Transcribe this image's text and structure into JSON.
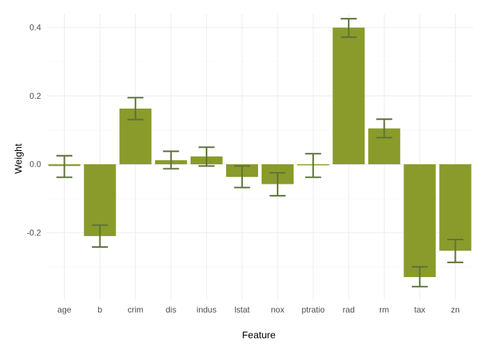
{
  "chart_data": {
    "type": "bar",
    "title": "",
    "xlabel": "Feature",
    "ylabel": "Weight",
    "categories": [
      "age",
      "b",
      "crim",
      "dis",
      "indus",
      "lstat",
      "nox",
      "ptratio",
      "rad",
      "rm",
      "tax",
      "zn"
    ],
    "values": [
      -0.005,
      -0.21,
      0.163,
      0.012,
      0.023,
      -0.037,
      -0.058,
      -0.003,
      0.4,
      0.105,
      -0.33,
      -0.253
    ],
    "error_low": [
      -0.038,
      -0.242,
      0.131,
      -0.013,
      -0.005,
      -0.068,
      -0.092,
      -0.038,
      0.372,
      0.078,
      -0.358,
      -0.287
    ],
    "error_high": [
      0.025,
      -0.178,
      0.195,
      0.038,
      0.05,
      -0.005,
      -0.025,
      0.031,
      0.426,
      0.132,
      -0.3,
      -0.22
    ],
    "ylim": [
      -0.395,
      0.44
    ],
    "yticks": [
      -0.2,
      0.0,
      0.2,
      0.4
    ],
    "ytick_labels": [
      "-0.2",
      "0.0",
      "0.2",
      "0.4"
    ],
    "grid": true,
    "bar_color": "#8a9a2b",
    "error_color": "#5e733a"
  }
}
